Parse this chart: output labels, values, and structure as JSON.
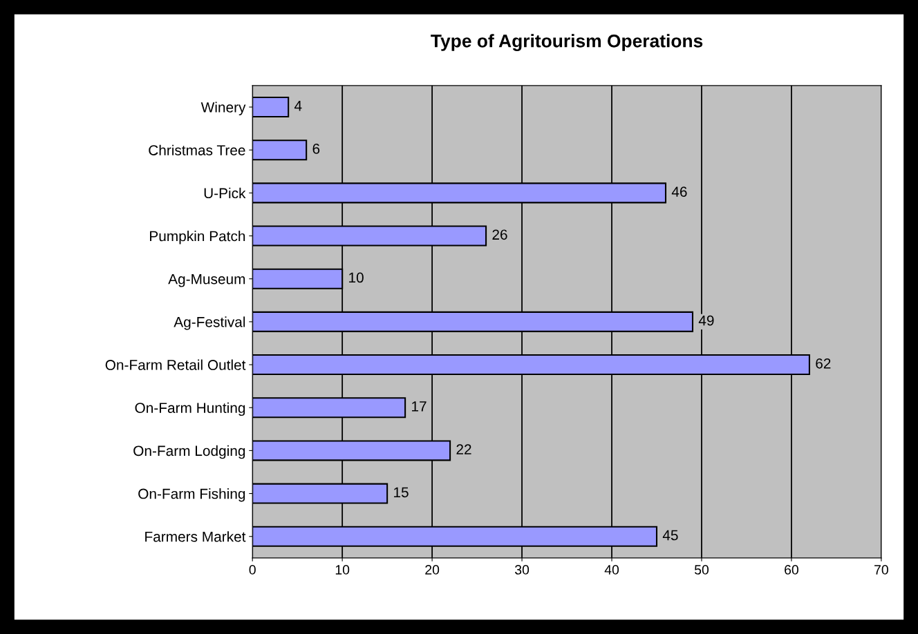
{
  "chart_data": {
    "type": "bar",
    "orientation": "horizontal",
    "title": "Type of Agritourism Operations",
    "categories": [
      "Winery",
      "Christmas Tree",
      "U-Pick",
      "Pumpkin Patch",
      "Ag-Museum",
      "Ag-Festival",
      "On-Farm Retail Outlet",
      "On-Farm Hunting",
      "On-Farm Lodging",
      "On-Farm Fishing",
      "Farmers Market"
    ],
    "values": [
      4,
      6,
      46,
      26,
      10,
      49,
      62,
      17,
      22,
      15,
      45
    ],
    "color": "#9999ff",
    "xlim": [
      0,
      70
    ],
    "xticks": [
      0,
      10,
      20,
      30,
      40,
      50,
      60,
      70
    ],
    "grid": "x",
    "data_labels": true
  }
}
